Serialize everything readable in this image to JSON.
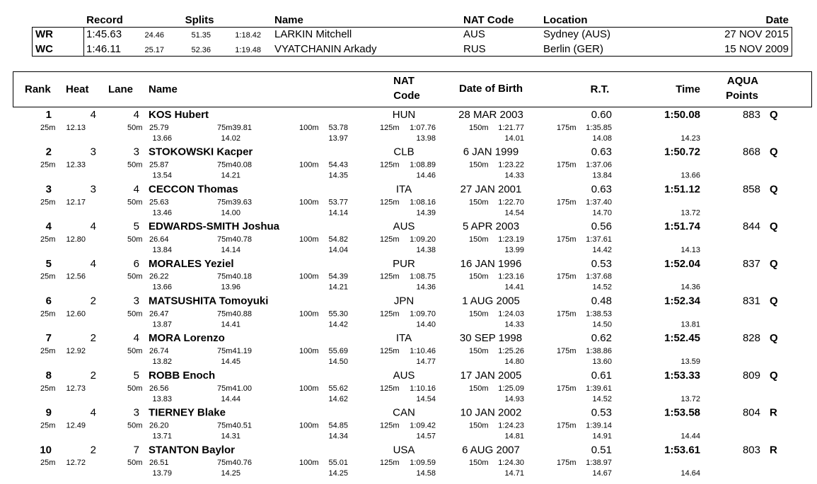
{
  "records": {
    "header": {
      "record": "Record",
      "splits": "Splits",
      "name": "Name",
      "nat_code": "NAT Code",
      "location": "Location",
      "date": "Date"
    },
    "rows": [
      {
        "label": "WR",
        "time": "1:45.63",
        "splits": [
          "24.46",
          "51.35",
          "1:18.42"
        ],
        "name": "LARKIN Mitchell",
        "nat": "AUS",
        "location": "Sydney (AUS)",
        "date": "27 NOV 2015"
      },
      {
        "label": "WC",
        "time": "1:46.11",
        "splits": [
          "25.17",
          "52.36",
          "1:19.48"
        ],
        "name": "VYATCHANIN Arkady",
        "nat": "RUS",
        "location": "Berlin (GER)",
        "date": "15 NOV 2009"
      }
    ]
  },
  "results": {
    "header": {
      "rank": "Rank",
      "heat": "Heat",
      "lane": "Lane",
      "name": "Name",
      "nat_code": [
        "NAT",
        "Code"
      ],
      "date_of_birth": "Date of Birth",
      "rt": "R.T.",
      "time": "Time",
      "aqua_points": [
        "AQUA",
        "Points"
      ]
    },
    "split_labels": [
      "25m",
      "50m",
      "75m",
      "100m",
      "125m",
      "150m",
      "175m"
    ],
    "rows": [
      {
        "rank": "1",
        "heat": "4",
        "lane": "4",
        "name": "KOS Hubert",
        "nat": "HUN",
        "dob": "28 MAR 2003",
        "rt": "0.60",
        "time": "1:50.08",
        "points": "883",
        "qual": "Q",
        "splits": [
          "12.13",
          "25.79",
          "39.81",
          "53.78",
          "1:07.76",
          "1:21.77",
          "1:35.85"
        ],
        "diffs": [
          "13.66",
          "14.02",
          "13.97",
          "13.98",
          "14.01",
          "14.08",
          "14.23"
        ]
      },
      {
        "rank": "2",
        "heat": "3",
        "lane": "3",
        "name": "STOKOWSKI Kacper",
        "nat": "CLB",
        "dob": "6 JAN 1999",
        "rt": "0.63",
        "time": "1:50.72",
        "points": "868",
        "qual": "Q",
        "splits": [
          "12.33",
          "25.87",
          "40.08",
          "54.43",
          "1:08.89",
          "1:23.22",
          "1:37.06"
        ],
        "diffs": [
          "13.54",
          "14.21",
          "14.35",
          "14.46",
          "14.33",
          "13.84",
          "13.66"
        ]
      },
      {
        "rank": "3",
        "heat": "3",
        "lane": "4",
        "name": "CECCON Thomas",
        "nat": "ITA",
        "dob": "27 JAN 2001",
        "rt": "0.63",
        "time": "1:51.12",
        "points": "858",
        "qual": "Q",
        "splits": [
          "12.17",
          "25.63",
          "39.63",
          "53.77",
          "1:08.16",
          "1:22.70",
          "1:37.40"
        ],
        "diffs": [
          "13.46",
          "14.00",
          "14.14",
          "14.39",
          "14.54",
          "14.70",
          "13.72"
        ]
      },
      {
        "rank": "4",
        "heat": "4",
        "lane": "5",
        "name": "EDWARDS-SMITH Joshua",
        "nat": "AUS",
        "dob": "5 APR 2003",
        "rt": "0.56",
        "time": "1:51.74",
        "points": "844",
        "qual": "Q",
        "splits": [
          "12.80",
          "26.64",
          "40.78",
          "54.82",
          "1:09.20",
          "1:23.19",
          "1:37.61"
        ],
        "diffs": [
          "13.84",
          "14.14",
          "14.04",
          "14.38",
          "13.99",
          "14.42",
          "14.13"
        ]
      },
      {
        "rank": "5",
        "heat": "4",
        "lane": "6",
        "name": "MORALES Yeziel",
        "nat": "PUR",
        "dob": "16 JAN 1996",
        "rt": "0.53",
        "time": "1:52.04",
        "points": "837",
        "qual": "Q",
        "splits": [
          "12.56",
          "26.22",
          "40.18",
          "54.39",
          "1:08.75",
          "1:23.16",
          "1:37.68"
        ],
        "diffs": [
          "13.66",
          "13.96",
          "14.21",
          "14.36",
          "14.41",
          "14.52",
          "14.36"
        ]
      },
      {
        "rank": "6",
        "heat": "2",
        "lane": "3",
        "name": "MATSUSHITA Tomoyuki",
        "nat": "JPN",
        "dob": "1 AUG 2005",
        "rt": "0.48",
        "time": "1:52.34",
        "points": "831",
        "qual": "Q",
        "splits": [
          "12.60",
          "26.47",
          "40.88",
          "55.30",
          "1:09.70",
          "1:24.03",
          "1:38.53"
        ],
        "diffs": [
          "13.87",
          "14.41",
          "14.42",
          "14.40",
          "14.33",
          "14.50",
          "13.81"
        ]
      },
      {
        "rank": "7",
        "heat": "2",
        "lane": "4",
        "name": "MORA Lorenzo",
        "nat": "ITA",
        "dob": "30 SEP 1998",
        "rt": "0.62",
        "time": "1:52.45",
        "points": "828",
        "qual": "Q",
        "splits": [
          "12.92",
          "26.74",
          "41.19",
          "55.69",
          "1:10.46",
          "1:25.26",
          "1:38.86"
        ],
        "diffs": [
          "13.82",
          "14.45",
          "14.50",
          "14.77",
          "14.80",
          "13.60",
          "13.59"
        ]
      },
      {
        "rank": "8",
        "heat": "2",
        "lane": "5",
        "name": "ROBB Enoch",
        "nat": "AUS",
        "dob": "17 JAN 2005",
        "rt": "0.61",
        "time": "1:53.33",
        "points": "809",
        "qual": "Q",
        "splits": [
          "12.73",
          "26.56",
          "41.00",
          "55.62",
          "1:10.16",
          "1:25.09",
          "1:39.61"
        ],
        "diffs": [
          "13.83",
          "14.44",
          "14.62",
          "14.54",
          "14.93",
          "14.52",
          "13.72"
        ]
      },
      {
        "rank": "9",
        "heat": "4",
        "lane": "3",
        "name": "TIERNEY Blake",
        "nat": "CAN",
        "dob": "10 JAN 2002",
        "rt": "0.53",
        "time": "1:53.58",
        "points": "804",
        "qual": "R",
        "splits": [
          "12.49",
          "26.20",
          "40.51",
          "54.85",
          "1:09.42",
          "1:24.23",
          "1:39.14"
        ],
        "diffs": [
          "13.71",
          "14.31",
          "14.34",
          "14.57",
          "14.81",
          "14.91",
          "14.44"
        ]
      },
      {
        "rank": "10",
        "heat": "2",
        "lane": "7",
        "name": "STANTON Baylor",
        "nat": "USA",
        "dob": "6 AUG 2007",
        "rt": "0.51",
        "time": "1:53.61",
        "points": "803",
        "qual": "R",
        "splits": [
          "12.72",
          "26.51",
          "40.76",
          "55.01",
          "1:09.59",
          "1:24.30",
          "1:38.97"
        ],
        "diffs": [
          "13.79",
          "14.25",
          "14.25",
          "14.58",
          "14.71",
          "14.67",
          "14.64"
        ]
      }
    ]
  }
}
